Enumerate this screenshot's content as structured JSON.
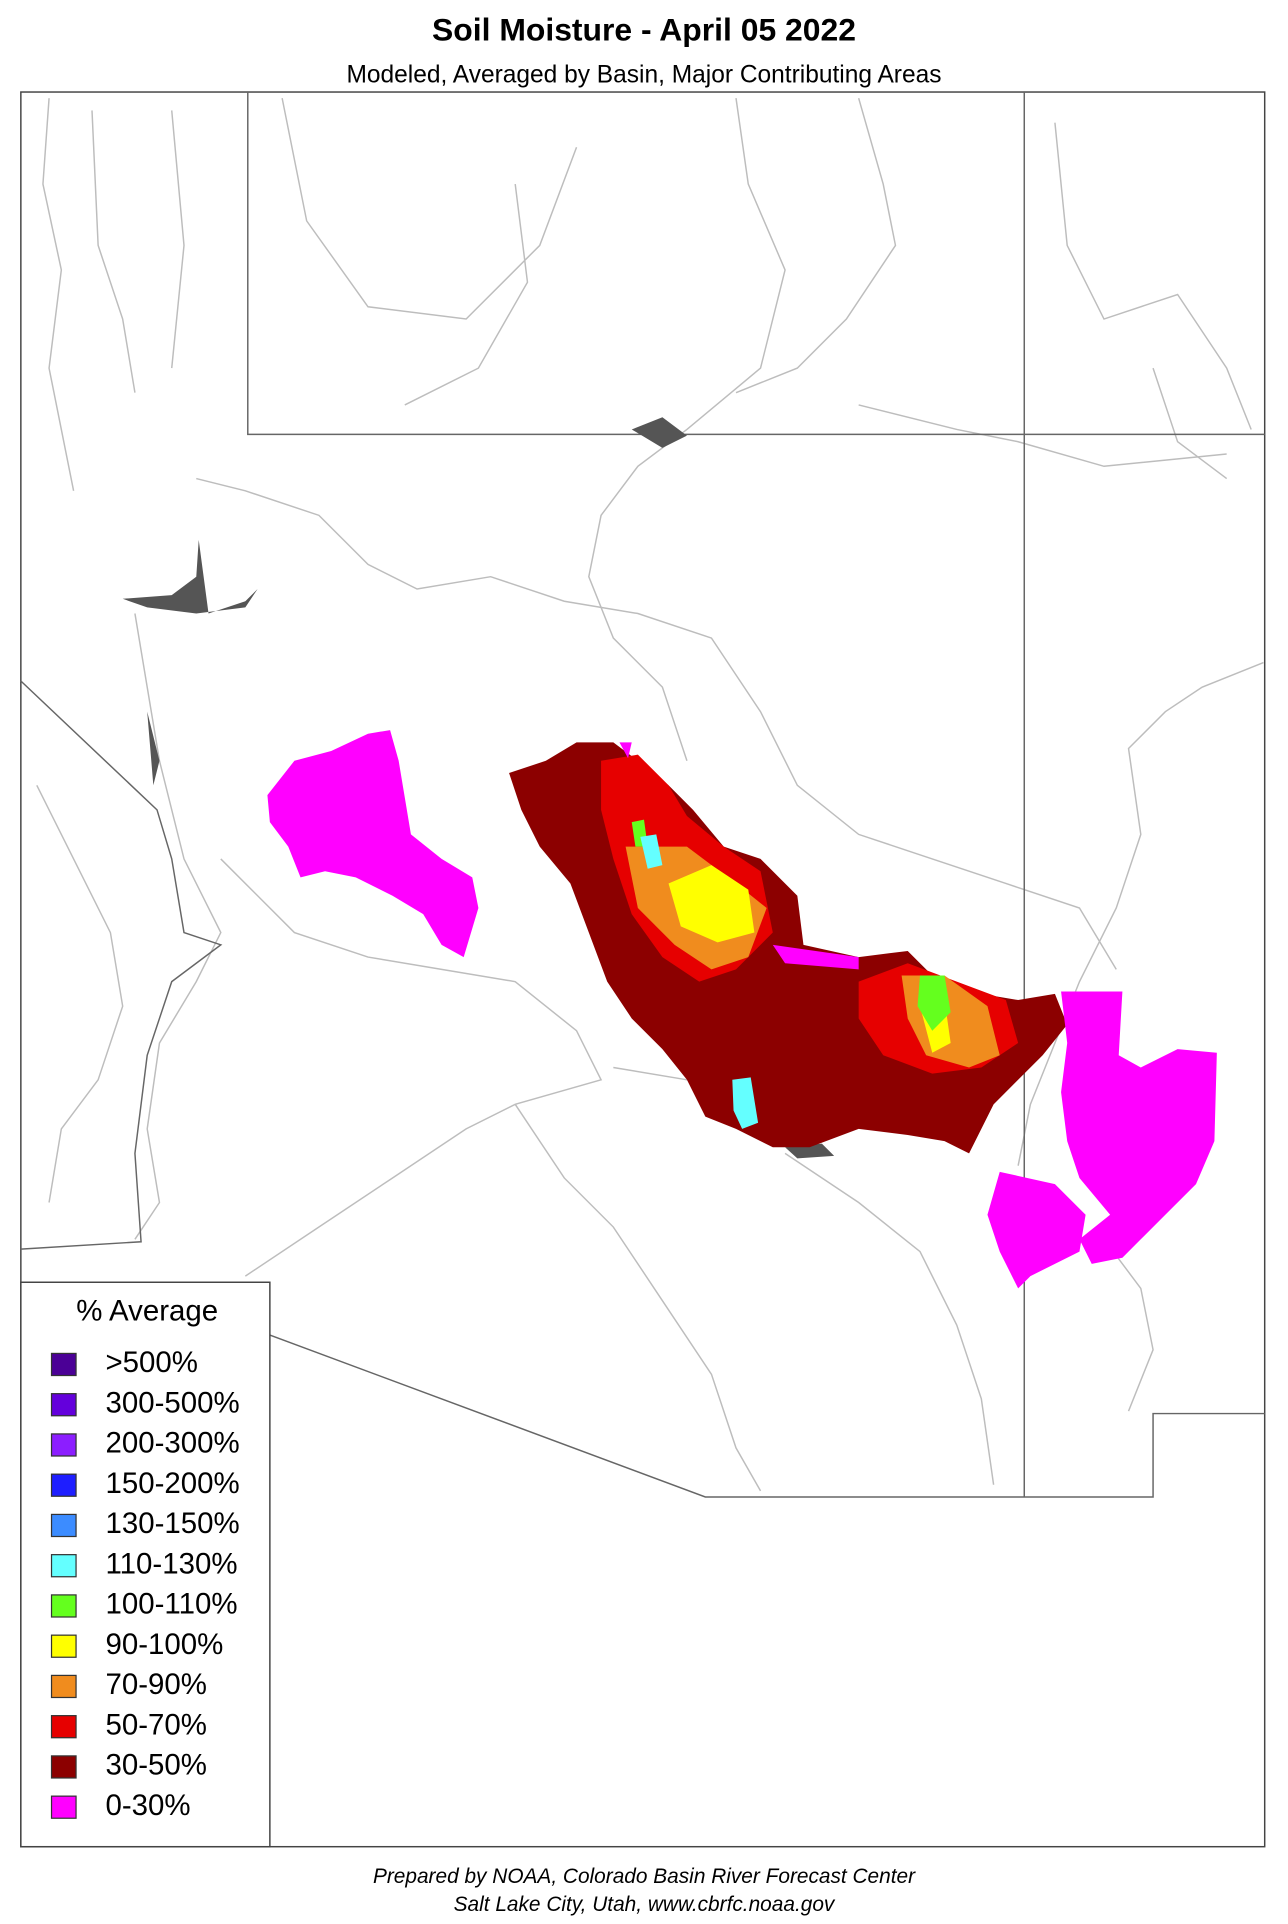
{
  "header": {
    "title": "Soil Moisture - April 05 2022",
    "subtitle": "Modeled, Averaged by Basin, Major Contributing Areas"
  },
  "legend": {
    "title": "% Average",
    "items": [
      {
        "label": ">500%",
        "color": "#4b0096"
      },
      {
        "label": "300-500%",
        "color": "#6400dc"
      },
      {
        "label": "200-300%",
        "color": "#8c1eff"
      },
      {
        "label": "150-200%",
        "color": "#1e1eff"
      },
      {
        "label": "130-150%",
        "color": "#3c8cff"
      },
      {
        "label": "110-130%",
        "color": "#64ffff"
      },
      {
        "label": "100-110%",
        "color": "#64ff1e"
      },
      {
        "label": "90-100%",
        "color": "#ffff00"
      },
      {
        "label": "70-90%",
        "color": "#f08c1e"
      },
      {
        "label": "50-70%",
        "color": "#e60000"
      },
      {
        "label": "30-50%",
        "color": "#8c0000"
      },
      {
        "label": "0-30%",
        "color": "#ff00ff"
      }
    ]
  },
  "footer": {
    "lines": [
      "Prepared by NOAA, Colorado Basin River Forecast Center",
      "Salt Lake City, Utah, www.cbrfc.noaa.gov"
    ]
  }
}
